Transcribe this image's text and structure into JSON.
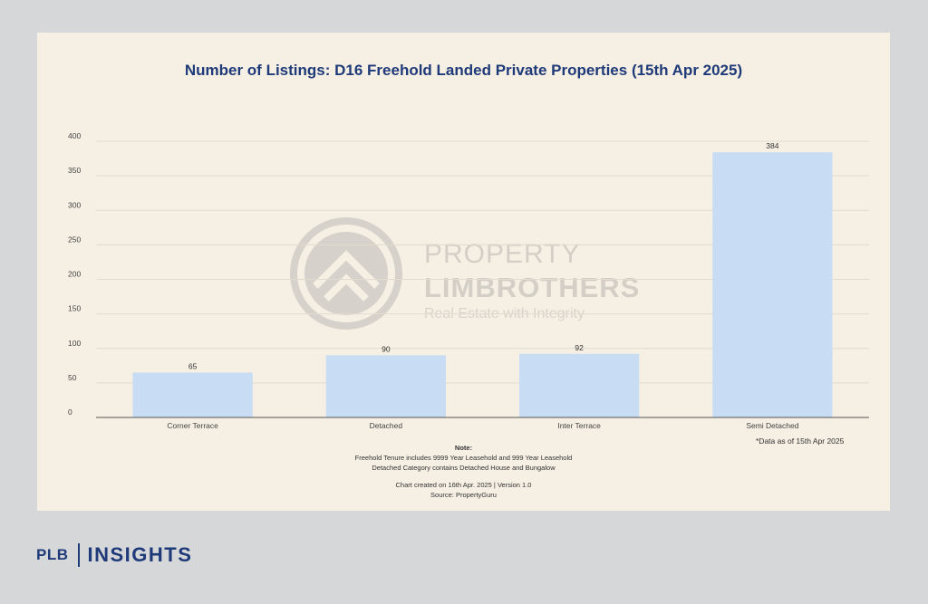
{
  "chart_data": {
    "type": "bar",
    "title": "Number of Listings: D16 Freehold Landed Private Properties (15th Apr 2025)",
    "categories": [
      "Corner Terrace",
      "Detached",
      "Inter Terrace",
      "Semi Detached"
    ],
    "values": [
      65,
      90,
      92,
      384
    ],
    "ylim": [
      0,
      400
    ],
    "yticks": [
      0,
      50,
      100,
      150,
      200,
      250,
      300,
      350,
      400
    ],
    "grid": true,
    "bar_color": "#c8dcf3"
  },
  "annotations": {
    "data_as_of": "*Data as of 15th Apr 2025",
    "note_title": "Note:",
    "note_lines": [
      "Freehold Tenure includes 9999 Year Leasehold and 999 Year Leasehold",
      "Detached Category contains Detached House and Bungalow"
    ],
    "created": "Chart created on 16th Apr. 2025 | Version 1.0",
    "source": "Source: PropertyGuru"
  },
  "watermark": {
    "line1": "PROPERTY",
    "line2": "LIMBROTHERS",
    "line3": "Real Estate with Integrity"
  },
  "brand": {
    "left": "PLB",
    "right": "INSIGHTS",
    "color": "#1f3a78"
  }
}
